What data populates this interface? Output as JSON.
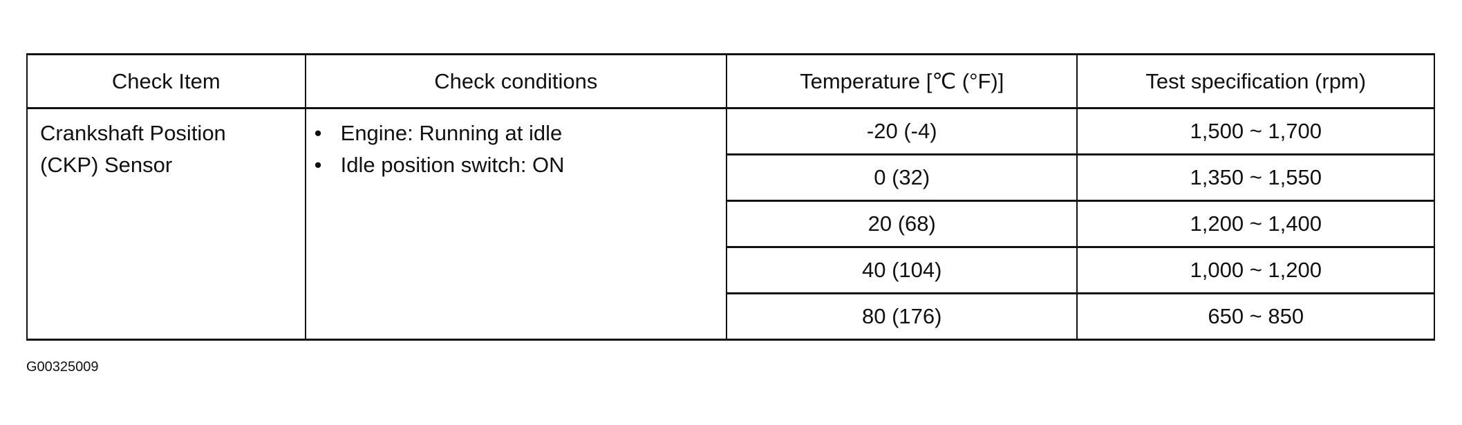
{
  "table": {
    "headers": [
      "Check Item",
      "Check conditions",
      "Temperature [℃ (°F)]",
      "Test specification (rpm)"
    ],
    "check_item": [
      "Crankshaft Position",
      "(CKP) Sensor"
    ],
    "conditions": [
      "Engine: Running at idle",
      "Idle position switch: ON"
    ],
    "rows": [
      {
        "temperature": "-20 (-4)",
        "spec": "1,500 ~ 1,700"
      },
      {
        "temperature": "0 (32)",
        "spec": "1,350 ~ 1,550"
      },
      {
        "temperature": "20 (68)",
        "spec": "1,200 ~ 1,400"
      },
      {
        "temperature": "40 (104)",
        "spec": "1,000 ~ 1,200"
      },
      {
        "temperature": "80 (176)",
        "spec": "650 ~ 850"
      }
    ]
  },
  "caption": "G00325009"
}
